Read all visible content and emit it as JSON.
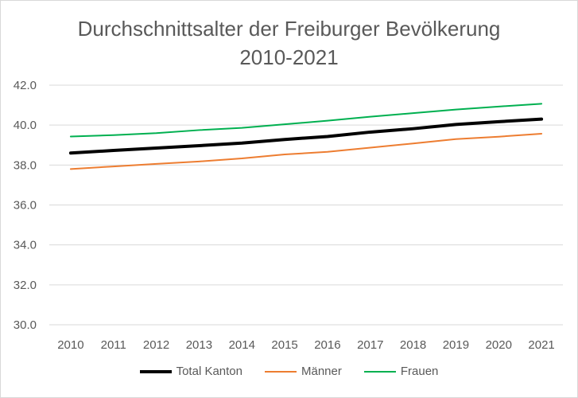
{
  "chart_data": {
    "type": "line",
    "title_line1": "Durchschnittsalter der Freiburger Bevölkerung",
    "title_line2": "2010-2021",
    "xlabel": "",
    "ylabel": "",
    "categories": [
      "2010",
      "2011",
      "2012",
      "2013",
      "2014",
      "2015",
      "2016",
      "2017",
      "2018",
      "2019",
      "2020",
      "2021"
    ],
    "ylim": [
      30,
      42
    ],
    "yticks": [
      "30.0",
      "32.0",
      "34.0",
      "36.0",
      "38.0",
      "40.0",
      "42.0"
    ],
    "grid": true,
    "legend_position": "bottom",
    "series": [
      {
        "name": "Total Kanton",
        "color": "#000000",
        "width": 4,
        "values": [
          38.6,
          38.73,
          38.85,
          38.97,
          39.1,
          39.28,
          39.43,
          39.65,
          39.82,
          40.03,
          40.17,
          40.3
        ]
      },
      {
        "name": "Männer",
        "color": "#ed7d31",
        "width": 2,
        "values": [
          37.8,
          37.93,
          38.06,
          38.18,
          38.33,
          38.53,
          38.66,
          38.87,
          39.08,
          39.3,
          39.42,
          39.57
        ]
      },
      {
        "name": "Frauen",
        "color": "#00b050",
        "width": 2,
        "values": [
          39.43,
          39.5,
          39.6,
          39.75,
          39.86,
          40.04,
          40.22,
          40.42,
          40.6,
          40.78,
          40.93,
          41.07
        ]
      }
    ]
  }
}
